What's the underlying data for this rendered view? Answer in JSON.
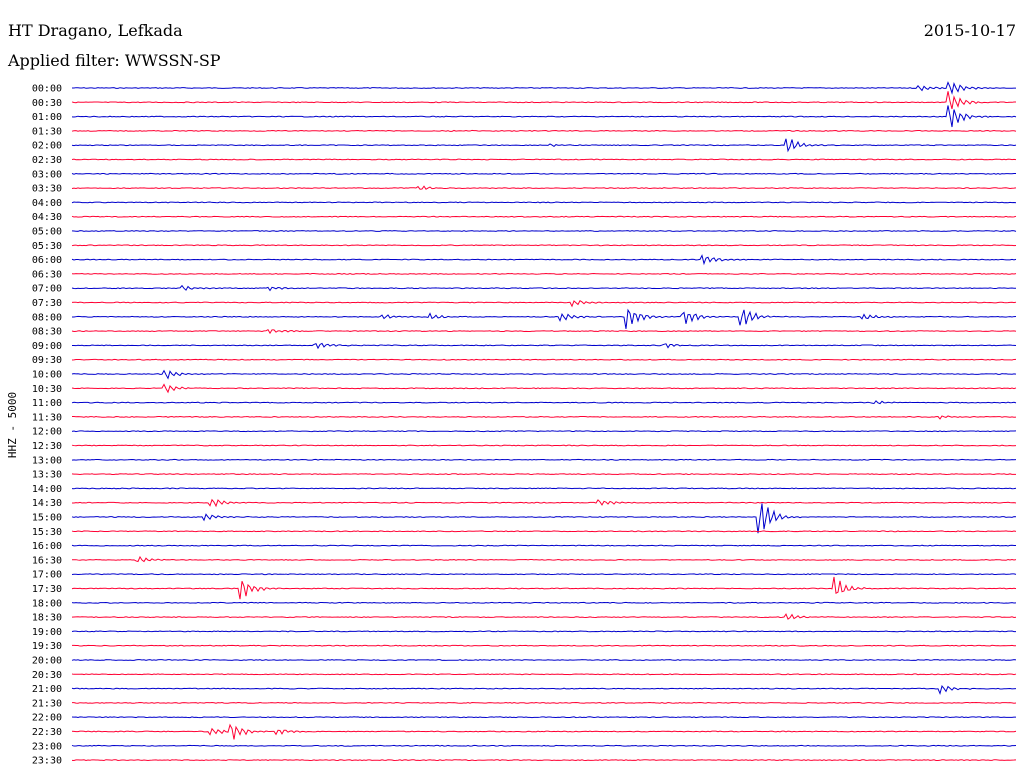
{
  "station": "HT Dragano, Lefkada",
  "date": "2015-10-17",
  "filter_label": "Applied filter: WWSSN-SP",
  "channel_label": "HHZ - 5000",
  "colors": {
    "even_hour": "#0000cc",
    "half_hour": "#ff0033",
    "text": "#000000"
  },
  "chart_data": {
    "type": "helicorder",
    "title": "HT Dragano, Lefkada",
    "subtitle": "Applied filter: WWSSN-SP",
    "ylabel": "HHZ - 5000",
    "date": "2015-10-17",
    "rows": [
      {
        "label": "00:00",
        "color": "blue",
        "events": [
          {
            "t": 0.9,
            "amp": 3
          },
          {
            "t": 0.93,
            "amp": 10
          }
        ]
      },
      {
        "label": "00:30",
        "color": "red",
        "events": [
          {
            "t": 0.93,
            "amp": 14
          }
        ]
      },
      {
        "label": "01:00",
        "color": "blue",
        "events": [
          {
            "t": 0.93,
            "amp": 16
          }
        ]
      },
      {
        "label": "01:30",
        "color": "red",
        "events": [
          {
            "t": 0.4,
            "amp": 1
          }
        ]
      },
      {
        "label": "02:00",
        "color": "blue",
        "events": [
          {
            "t": 0.51,
            "amp": 1.5
          },
          {
            "t": 0.76,
            "amp": 9
          }
        ]
      },
      {
        "label": "02:30",
        "color": "red",
        "events": []
      },
      {
        "label": "03:00",
        "color": "blue",
        "events": []
      },
      {
        "label": "03:30",
        "color": "red",
        "events": [
          {
            "t": 0.37,
            "amp": 3
          }
        ]
      },
      {
        "label": "04:00",
        "color": "blue",
        "events": []
      },
      {
        "label": "04:30",
        "color": "red",
        "events": []
      },
      {
        "label": "05:00",
        "color": "blue",
        "events": []
      },
      {
        "label": "05:30",
        "color": "red",
        "events": []
      },
      {
        "label": "06:00",
        "color": "blue",
        "events": [
          {
            "t": 0.67,
            "amp": 7
          }
        ]
      },
      {
        "label": "06:30",
        "color": "red",
        "events": []
      },
      {
        "label": "07:00",
        "color": "blue",
        "events": [
          {
            "t": 0.12,
            "amp": 3
          },
          {
            "t": 0.21,
            "amp": 2
          }
        ]
      },
      {
        "label": "07:30",
        "color": "red",
        "events": [
          {
            "t": 0.53,
            "amp": 4
          }
        ]
      },
      {
        "label": "08:00",
        "color": "blue",
        "events": [
          {
            "t": 0.33,
            "amp": 3
          },
          {
            "t": 0.38,
            "amp": 4
          },
          {
            "t": 0.52,
            "amp": 5
          },
          {
            "t": 0.59,
            "amp": 14
          },
          {
            "t": 0.65,
            "amp": 9
          },
          {
            "t": 0.71,
            "amp": 13
          },
          {
            "t": 0.84,
            "amp": 4
          }
        ]
      },
      {
        "label": "08:30",
        "color": "red",
        "events": [
          {
            "t": 0.21,
            "amp": 3
          }
        ]
      },
      {
        "label": "09:00",
        "color": "blue",
        "events": [
          {
            "t": 0.26,
            "amp": 4
          },
          {
            "t": 0.63,
            "amp": 3
          }
        ]
      },
      {
        "label": "09:30",
        "color": "red",
        "events": []
      },
      {
        "label": "10:00",
        "color": "blue",
        "events": [
          {
            "t": 0.1,
            "amp": 6
          }
        ]
      },
      {
        "label": "10:30",
        "color": "red",
        "events": [
          {
            "t": 0.1,
            "amp": 5
          }
        ]
      },
      {
        "label": "11:00",
        "color": "blue",
        "events": [
          {
            "t": 0.85,
            "amp": 3
          }
        ]
      },
      {
        "label": "11:30",
        "color": "red",
        "events": [
          {
            "t": 0.92,
            "amp": 2
          }
        ]
      },
      {
        "label": "12:00",
        "color": "blue",
        "events": []
      },
      {
        "label": "12:30",
        "color": "red",
        "events": []
      },
      {
        "label": "13:00",
        "color": "blue",
        "events": []
      },
      {
        "label": "13:30",
        "color": "red",
        "events": []
      },
      {
        "label": "14:00",
        "color": "blue",
        "events": []
      },
      {
        "label": "14:30",
        "color": "red",
        "events": [
          {
            "t": 0.15,
            "amp": 5
          },
          {
            "t": 0.56,
            "amp": 4
          }
        ]
      },
      {
        "label": "15:00",
        "color": "blue",
        "events": [
          {
            "t": 0.14,
            "amp": 5
          },
          {
            "t": 0.73,
            "amp": 20
          }
        ]
      },
      {
        "label": "15:30",
        "color": "red",
        "events": []
      },
      {
        "label": "16:00",
        "color": "blue",
        "events": []
      },
      {
        "label": "16:30",
        "color": "red",
        "events": [
          {
            "t": 0.07,
            "amp": 4
          }
        ]
      },
      {
        "label": "17:00",
        "color": "blue",
        "events": []
      },
      {
        "label": "17:30",
        "color": "red",
        "events": [
          {
            "t": 0.18,
            "amp": 12
          },
          {
            "t": 0.81,
            "amp": 12
          }
        ]
      },
      {
        "label": "18:00",
        "color": "blue",
        "events": []
      },
      {
        "label": "18:30",
        "color": "red",
        "events": [
          {
            "t": 0.76,
            "amp": 4
          }
        ]
      },
      {
        "label": "19:00",
        "color": "blue",
        "events": []
      },
      {
        "label": "19:30",
        "color": "red",
        "events": []
      },
      {
        "label": "20:00",
        "color": "blue",
        "events": []
      },
      {
        "label": "20:30",
        "color": "red",
        "events": []
      },
      {
        "label": "21:00",
        "color": "blue",
        "events": [
          {
            "t": 0.92,
            "amp": 6
          }
        ]
      },
      {
        "label": "21:30",
        "color": "red",
        "events": []
      },
      {
        "label": "22:00",
        "color": "blue",
        "events": []
      },
      {
        "label": "22:30",
        "color": "red",
        "events": [
          {
            "t": 0.15,
            "amp": 4
          },
          {
            "t": 0.17,
            "amp": 10
          },
          {
            "t": 0.22,
            "amp": 3
          }
        ]
      },
      {
        "label": "23:00",
        "color": "blue",
        "events": []
      },
      {
        "label": "23:30",
        "color": "red",
        "events": []
      }
    ]
  }
}
